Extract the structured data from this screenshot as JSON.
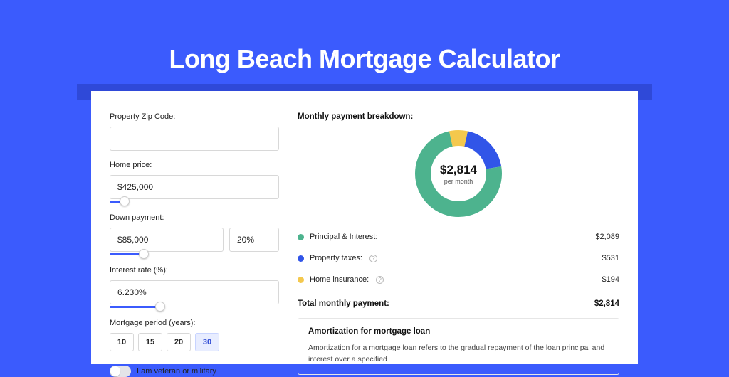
{
  "title": "Long Beach Mortgage Calculator",
  "colors": {
    "page_bg": "#3b5bfd",
    "shadow_bar": "#2f49d8",
    "card_bg": "#ffffff",
    "slider_fill": "#3b5bfd",
    "period_active_bg": "#e8edff",
    "period_active_text": "#3550d6"
  },
  "form": {
    "zip_label": "Property Zip Code:",
    "zip_value": "",
    "home_price_label": "Home price:",
    "home_price_value": "$425,000",
    "home_price_slider_pct": 9,
    "down_payment_label": "Down payment:",
    "down_payment_value": "$85,000",
    "down_payment_pct": "20%",
    "down_payment_slider_pct": 20,
    "interest_label": "Interest rate (%):",
    "interest_value": "6.230%",
    "interest_slider_pct": 30,
    "period_label": "Mortgage period (years):",
    "period_options": [
      "10",
      "15",
      "20",
      "30"
    ],
    "period_active_index": 3,
    "veteran_label": "I am veteran or military"
  },
  "breakdown": {
    "title": "Monthly payment breakdown:",
    "center_amount": "$2,814",
    "center_sub": "per month",
    "donut": {
      "radius": 50,
      "stroke": 22,
      "slices": [
        {
          "label": "Principal & Interest:",
          "value": "$2,089",
          "pct": 74.2,
          "color": "#4db38e",
          "info": false
        },
        {
          "label": "Property taxes:",
          "value": "$531",
          "pct": 18.9,
          "color": "#3155e8",
          "info": true
        },
        {
          "label": "Home insurance:",
          "value": "$194",
          "pct": 6.9,
          "color": "#f4c84d",
          "info": true
        }
      ]
    },
    "total_label": "Total monthly payment:",
    "total_value": "$2,814"
  },
  "amortization": {
    "title": "Amortization for mortgage loan",
    "text": "Amortization for a mortgage loan refers to the gradual repayment of the loan principal and interest over a specified"
  }
}
